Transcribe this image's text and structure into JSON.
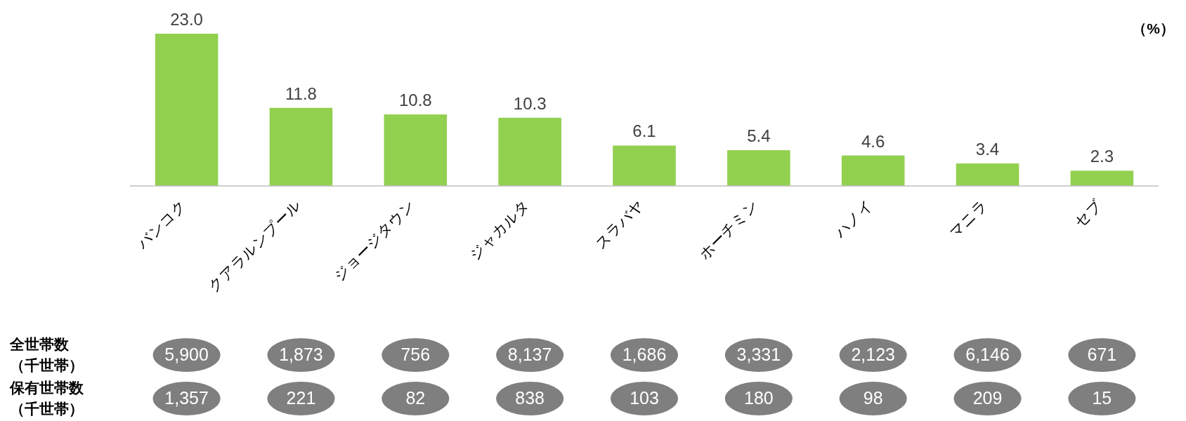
{
  "chart_data": [
    {
      "type": "bar",
      "categories": [
        "バンコク",
        "クアラルンプール",
        "ジョージタウン",
        "ジャカルタ",
        "スラバヤ",
        "ホーチミン",
        "ハノイ",
        "マニラ",
        "セブ"
      ],
      "values": [
        23.0,
        11.8,
        10.8,
        10.3,
        6.1,
        5.4,
        4.6,
        3.4,
        2.3
      ],
      "value_labels": [
        "23.0",
        "11.8",
        "10.8",
        "10.3",
        "6.1",
        "5.4",
        "4.6",
        "3.4",
        "2.3"
      ],
      "color": "#92d050",
      "annotations": [
        "（%）"
      ]
    },
    {
      "type": "other",
      "y_categories": [
        "全世帯数（千世帯）",
        "保有世帯数（千世帯）"
      ],
      "cell_labels": [
        [
          "5,900",
          "1,873",
          "756",
          "8,137",
          "1,686",
          "3,331",
          "2,123",
          "6,146",
          "671"
        ],
        [
          "1,357",
          "221",
          "82",
          "838",
          "103",
          "180",
          "98",
          "209",
          "15"
        ]
      ]
    }
  ]
}
